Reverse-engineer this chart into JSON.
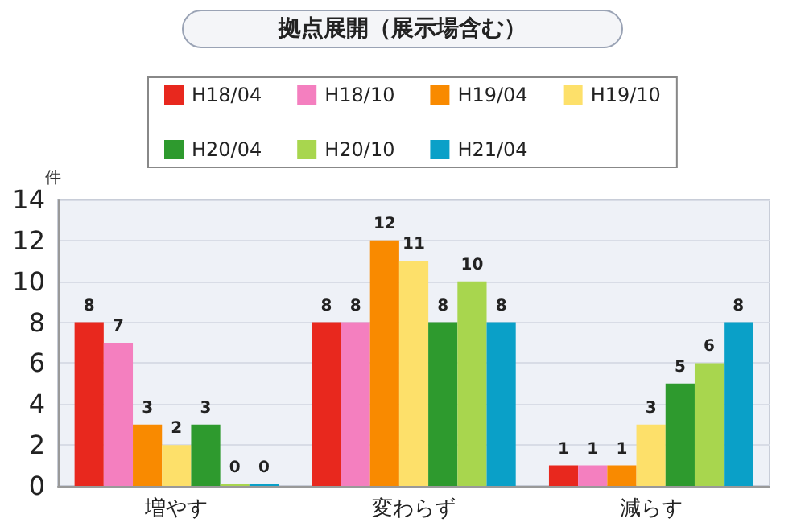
{
  "chart_data": {
    "type": "bar",
    "title": "拠点展開（展示場含む）",
    "ylabel": "件",
    "categories": [
      "増やす",
      "変わらず",
      "減らす"
    ],
    "series": [
      {
        "name": "H18/04",
        "color": "#e8281e",
        "values": [
          8,
          8,
          1
        ]
      },
      {
        "name": "H18/10",
        "color": "#f47fbf",
        "values": [
          7,
          8,
          1
        ]
      },
      {
        "name": "H19/04",
        "color": "#f98a00",
        "values": [
          3,
          12,
          1
        ]
      },
      {
        "name": "H19/10",
        "color": "#fde06a",
        "values": [
          2,
          11,
          3
        ]
      },
      {
        "name": "H20/04",
        "color": "#2e9a2e",
        "values": [
          3,
          8,
          5
        ]
      },
      {
        "name": "H20/10",
        "color": "#a8d64e",
        "values": [
          0,
          10,
          6
        ]
      },
      {
        "name": "H21/04",
        "color": "#0aa0c8",
        "values": [
          0,
          8,
          8
        ]
      }
    ],
    "ylim": [
      0,
      14
    ],
    "yticks": [
      0,
      2,
      4,
      6,
      8,
      10,
      12,
      14
    ],
    "grid": "y",
    "legend": "top",
    "data_labels": true
  }
}
